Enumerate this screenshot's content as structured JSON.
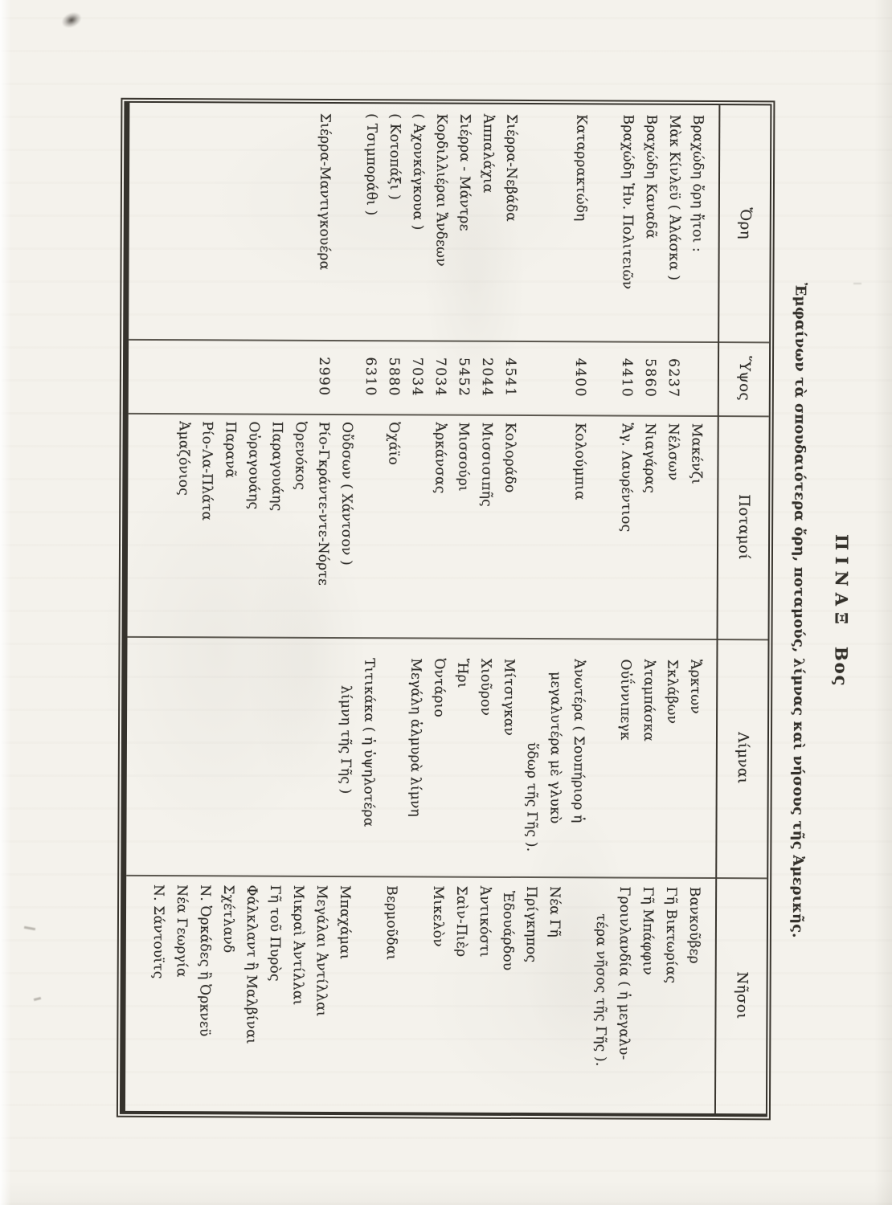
{
  "document": {
    "kind": "scanned book page with table rotated 90 degrees clockwise",
    "title_word": "ΠΙΝΑΞ",
    "title_number": "Βος",
    "title_full": "ΠΙΝΑΞ Βος",
    "subtitle": "Ἐμφαίνων τὰ σπουδαιότερα ὄρη, ποταμούς, λίμνας καὶ νήσους τῆς Ἀμερικῆς.",
    "ink_color": "#2e2c28",
    "paper_color": "#f4f2ec"
  },
  "table": {
    "headers": [
      "Ὄρη",
      "Ὕψος",
      "Ποταμοί",
      "Λίμναι",
      "Νῆσοι"
    ],
    "rows_count": 24,
    "cells": [
      {
        "r": 1,
        "c": 1,
        "t": "Βραχώδη ὄρη ἤτοι :"
      },
      {
        "r": 2,
        "c": 1,
        "t": "Μὰκ Κίνλεϋ ( Ἀλάσκα )"
      },
      {
        "r": 3,
        "c": 1,
        "t": "Βραχώδη Καναδᾶ"
      },
      {
        "r": 4,
        "c": 1,
        "t": "Βραχώδη Ἡν. Πολιτειῶν"
      },
      {
        "r": 6,
        "c": 1,
        "t": "Καταρρακτώδη"
      },
      {
        "r": 9,
        "c": 1,
        "t": "Σιέρρα-Νεβάδα"
      },
      {
        "r": 10,
        "c": 1,
        "t": "Ἀππαλάχια"
      },
      {
        "r": 11,
        "c": 1,
        "t": "Σιέρρα - Μάντρε"
      },
      {
        "r": 12,
        "c": 1,
        "t": "Κορδιλλιέραι Ἄνδεων"
      },
      {
        "r": 13,
        "c": 1,
        "t": "( Ἀχονκάγκουα )"
      },
      {
        "r": 14,
        "c": 1,
        "t": "( Κοτοπάξι )"
      },
      {
        "r": 15,
        "c": 1,
        "t": "( Τσιμποράθι )"
      },
      {
        "r": 17,
        "c": 1,
        "t": "Σιέρρα-Μαντιγκουέρα"
      },
      {
        "r": 2,
        "c": 2,
        "t": "6237"
      },
      {
        "r": 3,
        "c": 2,
        "t": "5860"
      },
      {
        "r": 4,
        "c": 2,
        "t": "4410"
      },
      {
        "r": 6,
        "c": 2,
        "t": "4400"
      },
      {
        "r": 9,
        "c": 2,
        "t": "4541"
      },
      {
        "r": 10,
        "c": 2,
        "t": "2044"
      },
      {
        "r": 11,
        "c": 2,
        "t": "5452"
      },
      {
        "r": 12,
        "c": 2,
        "t": "7034"
      },
      {
        "r": 13,
        "c": 2,
        "t": "7034"
      },
      {
        "r": 14,
        "c": 2,
        "t": "5880"
      },
      {
        "r": 15,
        "c": 2,
        "t": "6310"
      },
      {
        "r": 17,
        "c": 2,
        "t": "2990"
      },
      {
        "r": 1,
        "c": 3,
        "t": "Μακένζι"
      },
      {
        "r": 2,
        "c": 3,
        "t": "Νέλσων"
      },
      {
        "r": 3,
        "c": 3,
        "t": "Νιαγάρας"
      },
      {
        "r": 4,
        "c": 3,
        "t": "Ἅγ. Λαυρέντιος"
      },
      {
        "r": 6,
        "c": 3,
        "t": "Κολούμπια"
      },
      {
        "r": 9,
        "c": 3,
        "t": "Κολοράδο"
      },
      {
        "r": 10,
        "c": 3,
        "t": "Μισσισιπῆς"
      },
      {
        "r": 11,
        "c": 3,
        "t": "Μισσούρι"
      },
      {
        "r": 12,
        "c": 3,
        "t": "Ἀρκάνσας"
      },
      {
        "r": 14,
        "c": 3,
        "t": "Ὀχάϊο"
      },
      {
        "r": 16,
        "c": 3,
        "t": "Οὔδσων ( Χάντσον )"
      },
      {
        "r": 17,
        "c": 3,
        "t": "Ρίο-Γκράντε-ντε-Νόρτε"
      },
      {
        "r": 18,
        "c": 3,
        "t": "Ὀρενόκος"
      },
      {
        "r": 19,
        "c": 3,
        "t": "Παραγουάης"
      },
      {
        "r": 20,
        "c": 3,
        "t": "Οὐραγουάης"
      },
      {
        "r": 21,
        "c": 3,
        "t": "Παρανᾶ"
      },
      {
        "r": 22,
        "c": 3,
        "t": "Ρίο-Λα-Πλάτα"
      },
      {
        "r": 23,
        "c": 3,
        "t": "Ἀμαζόνιος"
      },
      {
        "r": 1,
        "c": 4,
        "t": "Ἄρκτων"
      },
      {
        "r": 2,
        "c": 4,
        "t": "Σκλάβων"
      },
      {
        "r": 3,
        "c": 4,
        "t": "Ἀταμπάσκα"
      },
      {
        "r": 4,
        "c": 4,
        "t": "Οὐΐννιπεγκ"
      },
      {
        "r": 6,
        "c": 4,
        "t": "Ἀνωτέρα ( Σουπήριορ ἡ"
      },
      {
        "r": 7,
        "c": 4,
        "t": "μεγαλυτέρα μὲ γλυκὺ",
        "ind": 16
      },
      {
        "r": 8,
        "c": 4,
        "t": "ὕδωρ τῆς Γῆς ).",
        "ind": 104
      },
      {
        "r": 9,
        "c": 4,
        "t": "Μίτσιγκαν"
      },
      {
        "r": 10,
        "c": 4,
        "t": "Χιοῦρον"
      },
      {
        "r": 11,
        "c": 4,
        "t": "Ἤρι"
      },
      {
        "r": 12,
        "c": 4,
        "t": "Ὀντάριο"
      },
      {
        "r": 13,
        "c": 4,
        "t": "Μεγάλη ἁλμυρὰ λίμνη"
      },
      {
        "r": 15,
        "c": 4,
        "t": "Τιτικάκα ( ἡ ὑψηλοτέρα"
      },
      {
        "r": 16,
        "c": 4,
        "t": "λίμνη τῆς Γῆς )",
        "ind": 34
      },
      {
        "r": 1,
        "c": 5,
        "t": "Βανκοῦβερ"
      },
      {
        "r": 2,
        "c": 5,
        "t": "Γῆ Βικτωρίας"
      },
      {
        "r": 3,
        "c": 5,
        "t": "Γῆ Μπάφφιν"
      },
      {
        "r": 4,
        "c": 5,
        "t": "Γροινλανδία ( ἡ μεγαλυ-"
      },
      {
        "r": 5,
        "c": 5,
        "t": "τέρα νῆσος τῆς Γῆς ).",
        "ind": 34
      },
      {
        "r": 7,
        "c": 5,
        "t": "Νέα Γῆ"
      },
      {
        "r": 8,
        "c": 5,
        "t": "Πρίγκηπος"
      },
      {
        "r": 9,
        "c": 5,
        "t": "Ἐδουάρδου",
        "ind": 6
      },
      {
        "r": 10,
        "c": 5,
        "t": "Ἀντικόστι"
      },
      {
        "r": 11,
        "c": 5,
        "t": "Σαὶν-Πιὲρ"
      },
      {
        "r": 12,
        "c": 5,
        "t": "Μικελὸν"
      },
      {
        "r": 14,
        "c": 5,
        "t": "Βερμοῦδαι"
      },
      {
        "r": 16,
        "c": 5,
        "t": "Μπαχάμαι"
      },
      {
        "r": 17,
        "c": 5,
        "t": "Μεγάλαι Ἀντίλλαι"
      },
      {
        "r": 18,
        "c": 5,
        "t": "Μικραὶ Ἀντίλλαι"
      },
      {
        "r": 19,
        "c": 5,
        "t": "Γῆ τοῦ Πυρὸς"
      },
      {
        "r": 20,
        "c": 5,
        "t": "Φάλκλαντ ἢ Μαλβίναι"
      },
      {
        "r": 21,
        "c": 5,
        "t": "Σχέτλανδ"
      },
      {
        "r": 22,
        "c": 5,
        "t": "Ν. Ὀρκάδες ἢ Ὀρκνεϋ"
      },
      {
        "r": 23,
        "c": 5,
        "t": "Νέα Γεωργία"
      },
      {
        "r": 24,
        "c": 5,
        "t": "Ν. Σάντουϊτς"
      }
    ]
  }
}
